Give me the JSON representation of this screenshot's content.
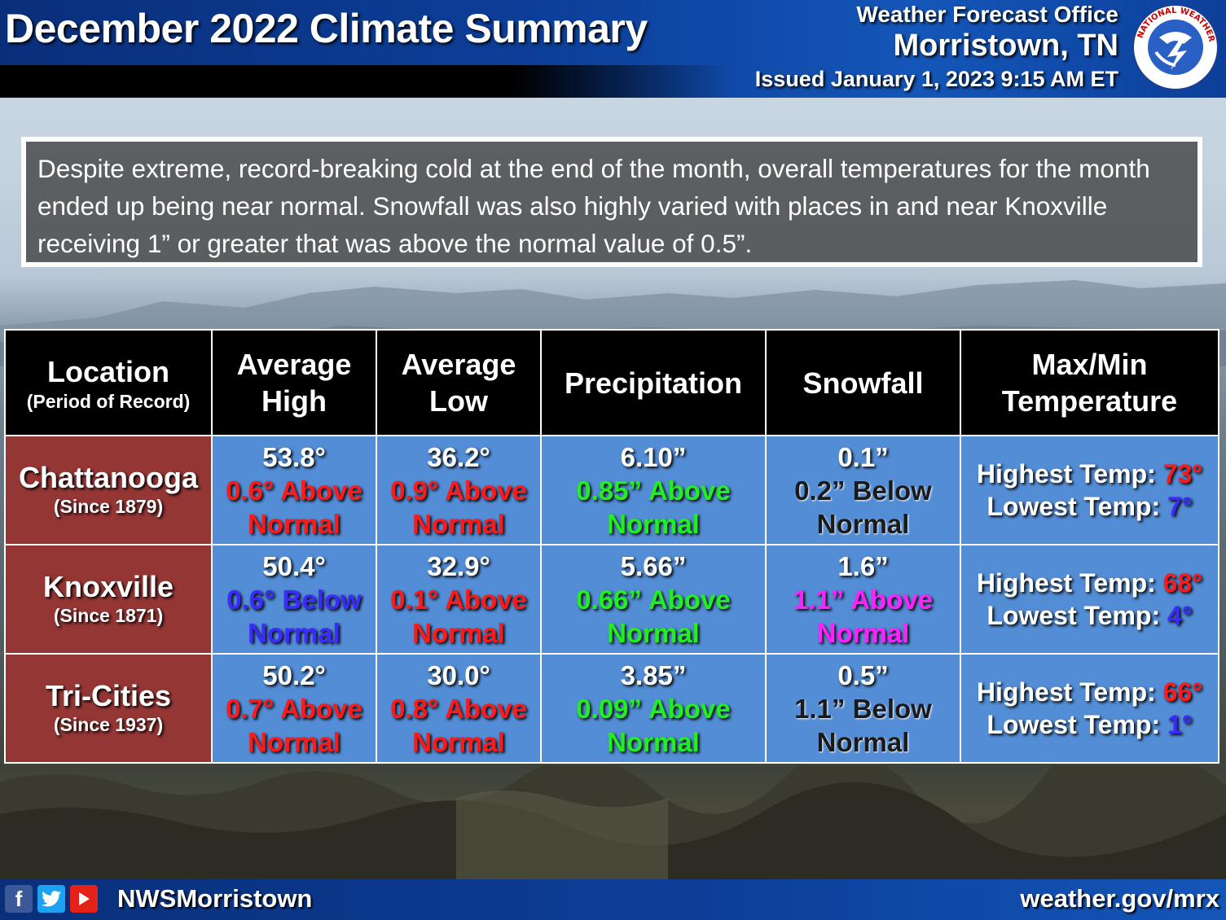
{
  "header": {
    "title": "December 2022 Climate Summary",
    "office_line1": "Weather Forecast Office",
    "office_line2": "Morristown, TN",
    "issued": "Issued January 1, 2023 9:15 AM ET",
    "logo_text": "NATIONAL WEATHER SERVICE"
  },
  "summary": "Despite extreme, record-breaking cold at the end of the month, overall temperatures for the month ended up being near normal. Snowfall was also highly varied with places in and near Knoxville receiving 1” or greater that was above the normal value of 0.5”.",
  "table": {
    "headers": {
      "location": "Location",
      "location_sub": "(Period of Record)",
      "avg_high_1": "Average",
      "avg_high_2": "High",
      "avg_low_1": "Average",
      "avg_low_2": "Low",
      "precip": "Precipitation",
      "snow": "Snowfall",
      "maxmin_1": "Max/Min",
      "maxmin_2": "Temperature"
    },
    "rows": [
      {
        "name": "Chattanooga",
        "since": "(Since 1879)",
        "avg_high": {
          "value": "53.8°",
          "dep": "0.6° Above",
          "norm": "Normal"
        },
        "avg_low": {
          "value": "36.2°",
          "dep": "0.9° Above",
          "norm": "Normal"
        },
        "precip": {
          "value": "6.10”",
          "dep": "0.85” Above",
          "norm": "Normal"
        },
        "snow": {
          "value": "0.1”",
          "dep": "0.2” Below",
          "norm": "Normal"
        },
        "highest_label": "Highest Temp:",
        "highest": "73°",
        "lowest_label": "Lowest Temp:",
        "lowest": "7°"
      },
      {
        "name": "Knoxville",
        "since": "(Since 1871)",
        "avg_high": {
          "value": "50.4°",
          "dep": "0.6° Below",
          "norm": "Normal"
        },
        "avg_low": {
          "value": "32.9°",
          "dep": "0.1° Above",
          "norm": "Normal"
        },
        "precip": {
          "value": "5.66”",
          "dep": "0.66” Above",
          "norm": "Normal"
        },
        "snow": {
          "value": "1.6”",
          "dep": "1.1” Above",
          "norm": "Normal"
        },
        "highest_label": "Highest Temp:",
        "highest": "68°",
        "lowest_label": "Lowest Temp:",
        "lowest": "4°"
      },
      {
        "name": "Tri-Cities",
        "since": "(Since 1937)",
        "avg_high": {
          "value": "50.2°",
          "dep": "0.7° Above",
          "norm": "Normal"
        },
        "avg_low": {
          "value": "30.0°",
          "dep": "0.8° Above",
          "norm": "Normal"
        },
        "precip": {
          "value": "3.85”",
          "dep": "0.09” Above",
          "norm": "Normal"
        },
        "snow": {
          "value": "0.5”",
          "dep": "1.1” Below",
          "norm": "Normal"
        },
        "highest_label": "Highest Temp:",
        "highest": "66°",
        "lowest_label": "Lowest Temp:",
        "lowest": "1°"
      }
    ]
  },
  "colors": {
    "above_temp": "#ff1a1a",
    "below_temp": "#3b2bff",
    "above_precip": "#22ee22",
    "above_snow": "#ff22ff",
    "below_snow": "#1a1a1a",
    "high_temp": "#ff1a1a",
    "low_temp": "#3b2bff",
    "location_bg": "#943634",
    "cell_bg": "#538dd5",
    "header_bg": "#000000"
  },
  "footer": {
    "icons": [
      "facebook-icon",
      "twitter-icon",
      "youtube-icon"
    ],
    "handle": "NWSMorristown",
    "url": "weather.gov/mrx"
  }
}
